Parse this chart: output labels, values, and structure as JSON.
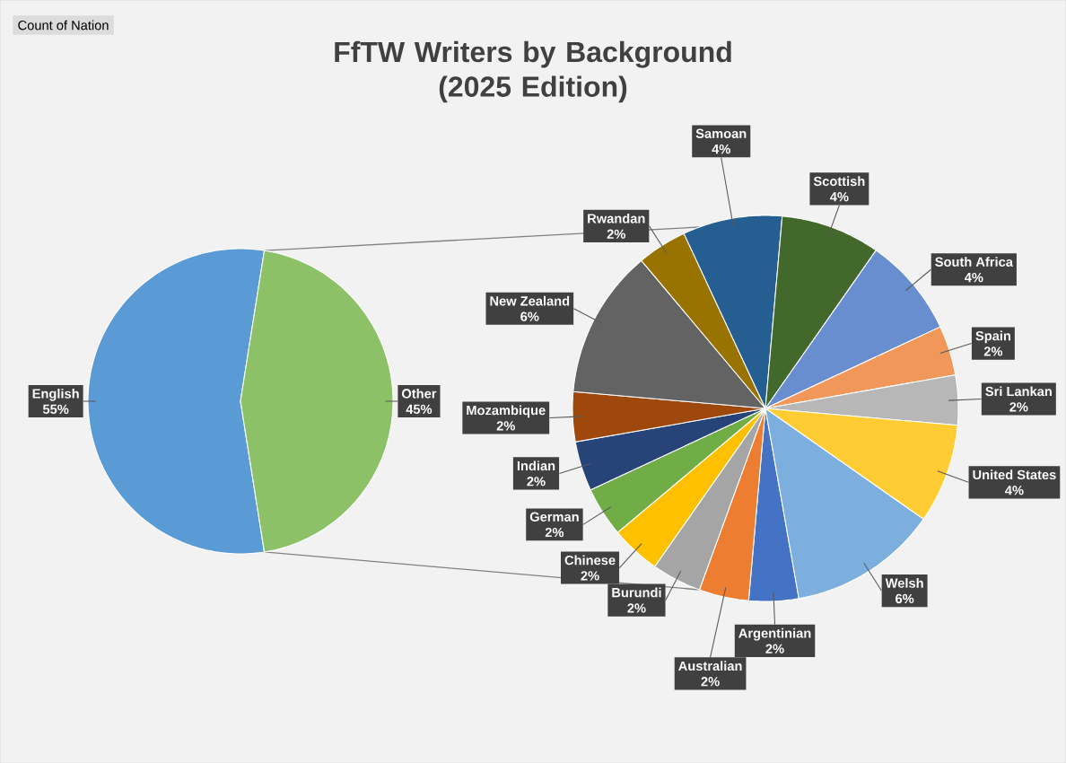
{
  "chart_data": [
    {
      "type": "pie",
      "title": "FfTW Writers by Background\n(2025 Edition)",
      "annotations": [
        "Count of Nation"
      ],
      "categories": [
        "English",
        "Other"
      ],
      "values": [
        55,
        45
      ],
      "value_labels": [
        "55%",
        "45%"
      ],
      "colors": [
        "#5b9bd5",
        "#8cc168"
      ]
    },
    {
      "type": "pie",
      "categories": [
        "Argentinian",
        "Australian",
        "Burundi",
        "Chinese",
        "German",
        "Indian",
        "Mozambique",
        "New Zealand",
        "Rwandan",
        "Samoan",
        "Scottish",
        "South Africa",
        "Spain",
        "Sri Lankan",
        "United States",
        "Welsh"
      ],
      "values": [
        2,
        2,
        2,
        2,
        2,
        2,
        2,
        6,
        2,
        4,
        4,
        4,
        2,
        2,
        4,
        6
      ],
      "value_labels": [
        "2%",
        "2%",
        "2%",
        "2%",
        "2%",
        "2%",
        "2%",
        "6%",
        "2%",
        "4%",
        "4%",
        "4%",
        "2%",
        "2%",
        "4%",
        "6%"
      ],
      "colors": [
        "#4472c4",
        "#ed7d31",
        "#a5a5a5",
        "#ffc000",
        "#70ad47",
        "#264478",
        "#9e480e",
        "#636363",
        "#997300",
        "#255e91",
        "#43682b",
        "#698ed0",
        "#f1975a",
        "#b7b7b7",
        "#ffcd33",
        "#7cafdd"
      ]
    }
  ]
}
